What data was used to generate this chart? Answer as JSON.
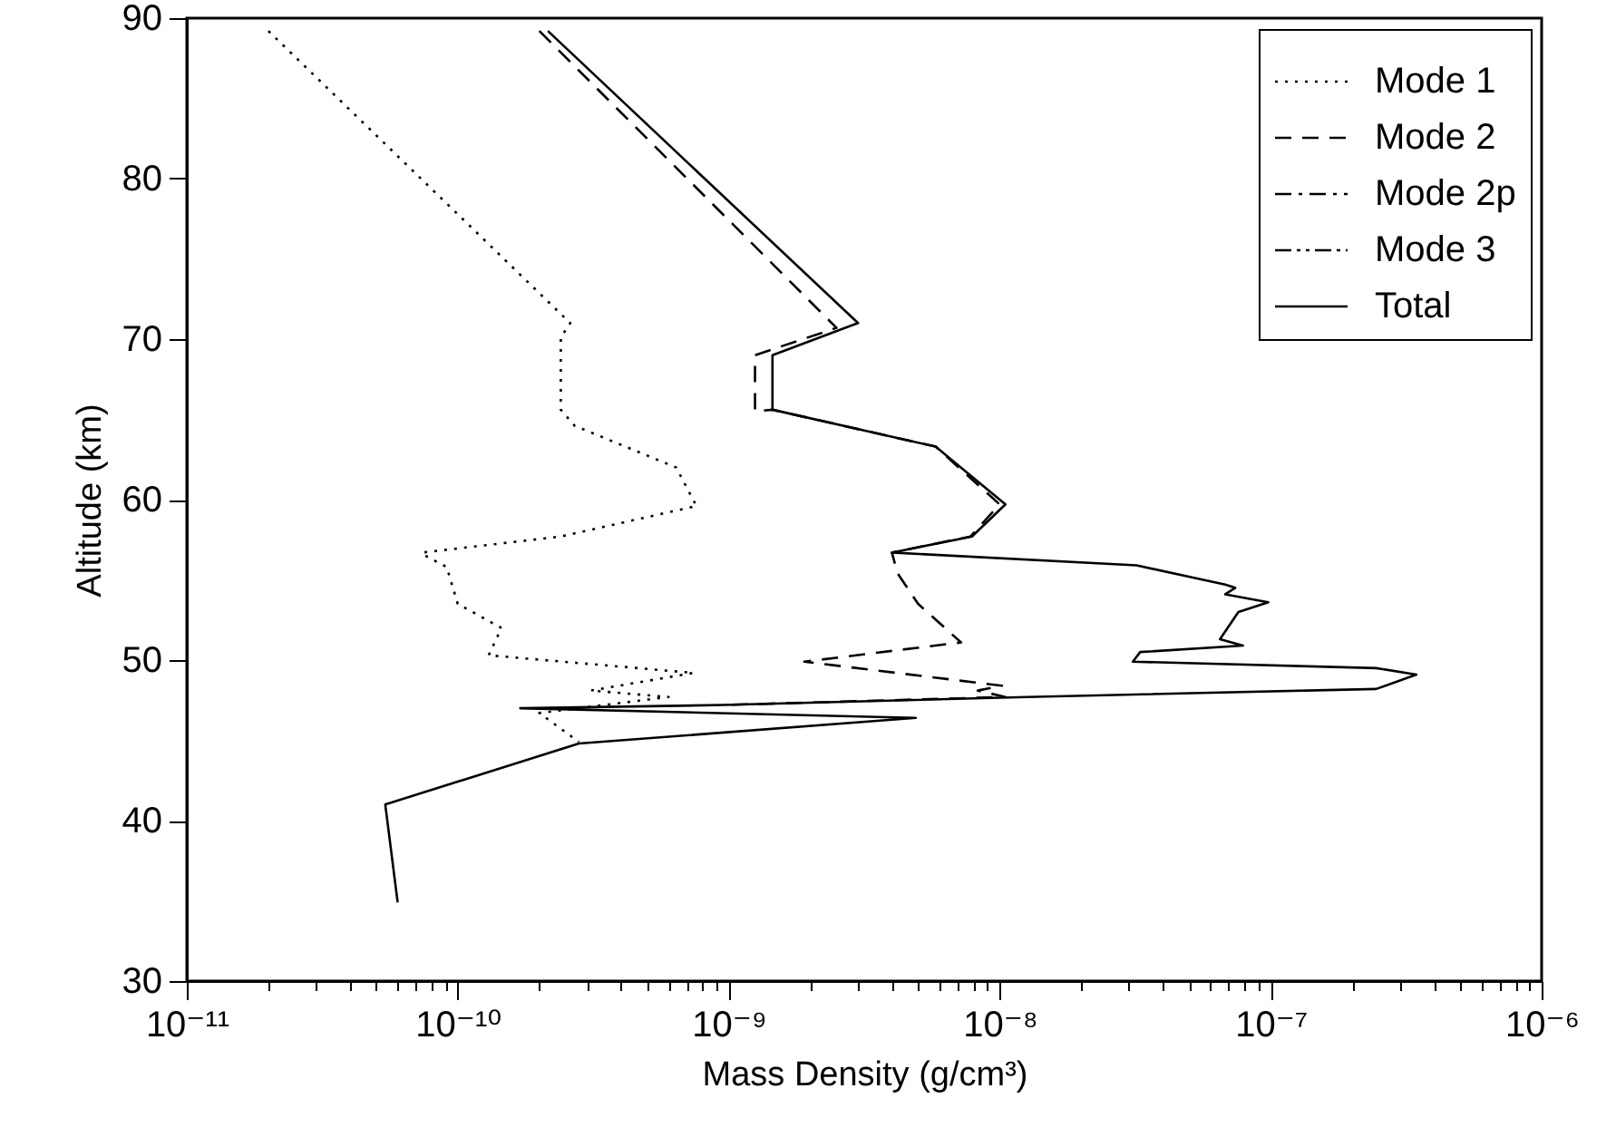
{
  "chart_data": {
    "type": "line",
    "xlabel": "Mass Density (g/cm³)",
    "ylabel": "Altitude (km)",
    "log": "x",
    "legend": "top right",
    "grid": false,
    "xlim": [
      1e-11,
      1e-06
    ],
    "xticks": [
      {
        "value": 1e-11,
        "label": "10⁻¹¹"
      },
      {
        "value": 2e-11,
        "label": null
      },
      {
        "value": 3e-11,
        "label": null
      },
      {
        "value": 4e-11,
        "label": null
      },
      {
        "value": 5e-11,
        "label": null
      },
      {
        "value": 6e-11,
        "label": null
      },
      {
        "value": 7e-11,
        "label": null
      },
      {
        "value": 8e-11,
        "label": null
      },
      {
        "value": 9e-11,
        "label": null
      },
      {
        "value": 1e-10,
        "label": "10⁻¹⁰"
      },
      {
        "value": 2e-10,
        "label": null
      },
      {
        "value": 3e-10,
        "label": null
      },
      {
        "value": 4e-10,
        "label": null
      },
      {
        "value": 5e-10,
        "label": null
      },
      {
        "value": 6e-10,
        "label": null
      },
      {
        "value": 7e-10,
        "label": null
      },
      {
        "value": 8e-10,
        "label": null
      },
      {
        "value": 9e-10,
        "label": null
      },
      {
        "value": 1e-09,
        "label": "10⁻⁹"
      },
      {
        "value": 2e-09,
        "label": null
      },
      {
        "value": 3e-09,
        "label": null
      },
      {
        "value": 4e-09,
        "label": null
      },
      {
        "value": 5e-09,
        "label": null
      },
      {
        "value": 6e-09,
        "label": null
      },
      {
        "value": 7e-09,
        "label": null
      },
      {
        "value": 8e-09,
        "label": null
      },
      {
        "value": 9e-09,
        "label": null
      },
      {
        "value": 1e-08,
        "label": "10⁻⁸"
      },
      {
        "value": 2e-08,
        "label": null
      },
      {
        "value": 3e-08,
        "label": null
      },
      {
        "value": 4e-08,
        "label": null
      },
      {
        "value": 5e-08,
        "label": null
      },
      {
        "value": 6e-08,
        "label": null
      },
      {
        "value": 7e-08,
        "label": null
      },
      {
        "value": 8e-08,
        "label": null
      },
      {
        "value": 9e-08,
        "label": null
      },
      {
        "value": 1e-07,
        "label": "10⁻⁷"
      },
      {
        "value": 2e-07,
        "label": null
      },
      {
        "value": 3e-07,
        "label": null
      },
      {
        "value": 4e-07,
        "label": null
      },
      {
        "value": 5e-07,
        "label": null
      },
      {
        "value": 6e-07,
        "label": null
      },
      {
        "value": 7e-07,
        "label": null
      },
      {
        "value": 8e-07,
        "label": null
      },
      {
        "value": 9e-07,
        "label": null
      },
      {
        "value": 1e-06,
        "label": "10⁻⁶"
      }
    ],
    "ylim": [
      30,
      90
    ],
    "yticks": [
      30,
      40,
      50,
      60,
      70,
      80,
      90
    ],
    "series": [
      {
        "name": "Mode 1",
        "color": "#000000",
        "line_style": "dotted",
        "x": [
          2e-11,
          2.6e-10,
          2.4e-10,
          2.4e-10,
          2.7e-10,
          6.4e-10,
          7.6e-10,
          2.4e-10,
          7.4e-11,
          7.4e-11,
          9.1e-11,
          1e-10,
          1.45e-10,
          1.3e-10,
          7.4e-10,
          3.1e-10,
          6e-10,
          2e-10,
          2.8e-10
        ],
        "values": [
          89.2,
          71.0,
          70.1,
          65.6,
          64.6,
          62.0,
          59.6,
          57.7,
          56.7,
          56.6,
          55.8,
          53.5,
          52.0,
          50.3,
          49.2,
          48.1,
          47.7,
          46.7,
          44.9
        ]
      },
      {
        "name": "Mode 2",
        "color": "#000000",
        "line_style": "dashed",
        "x": [
          2e-10,
          2.5e-09,
          1.25e-09,
          1.25e-09,
          1.45e-09,
          5.8e-09,
          1e-08,
          7.8e-09,
          4e-09,
          4.2e-09,
          5e-09,
          7.2e-09,
          1.9e-09,
          1.02e-08,
          8.3e-09,
          1.05e-08,
          9.5e-10
        ],
        "values": [
          89.2,
          70.7,
          69.0,
          65.5,
          65.6,
          63.3,
          59.7,
          57.7,
          56.7,
          55.4,
          53.5,
          51.1,
          49.9,
          48.4,
          48.1,
          47.7,
          47.2
        ]
      },
      {
        "name": "Mode 2p",
        "color": "#000000",
        "line_style": "dashdot"
      },
      {
        "name": "Mode 3",
        "color": "#000000",
        "line_style": "dashdotdot"
      },
      {
        "name": "Total",
        "color": "#000000",
        "line_style": "solid",
        "x": [
          2.15e-10,
          3e-09,
          1.45e-09,
          1.45e-09,
          5.8e-09,
          1.05e-08,
          7.9e-09,
          4e-09,
          3.2e-08,
          6.8e-08,
          7.4e-08,
          6.8e-08,
          9.8e-08,
          7.6e-08,
          6.5e-08,
          7.9e-08,
          3.3e-08,
          3.1e-08,
          2.45e-07,
          3.45e-07,
          2.45e-07,
          1.26e-08,
          9.5e-10,
          1.7e-10,
          4.9e-09,
          2.8e-10,
          5.4e-11,
          6e-11
        ],
        "values": [
          89.2,
          71.0,
          69.0,
          65.6,
          63.3,
          59.7,
          57.7,
          56.7,
          55.9,
          54.7,
          54.5,
          54.1,
          53.6,
          53.0,
          51.3,
          50.9,
          50.5,
          49.9,
          49.5,
          49.1,
          48.2,
          47.7,
          47.2,
          47.0,
          46.4,
          44.8,
          41.0,
          34.9
        ]
      }
    ]
  }
}
